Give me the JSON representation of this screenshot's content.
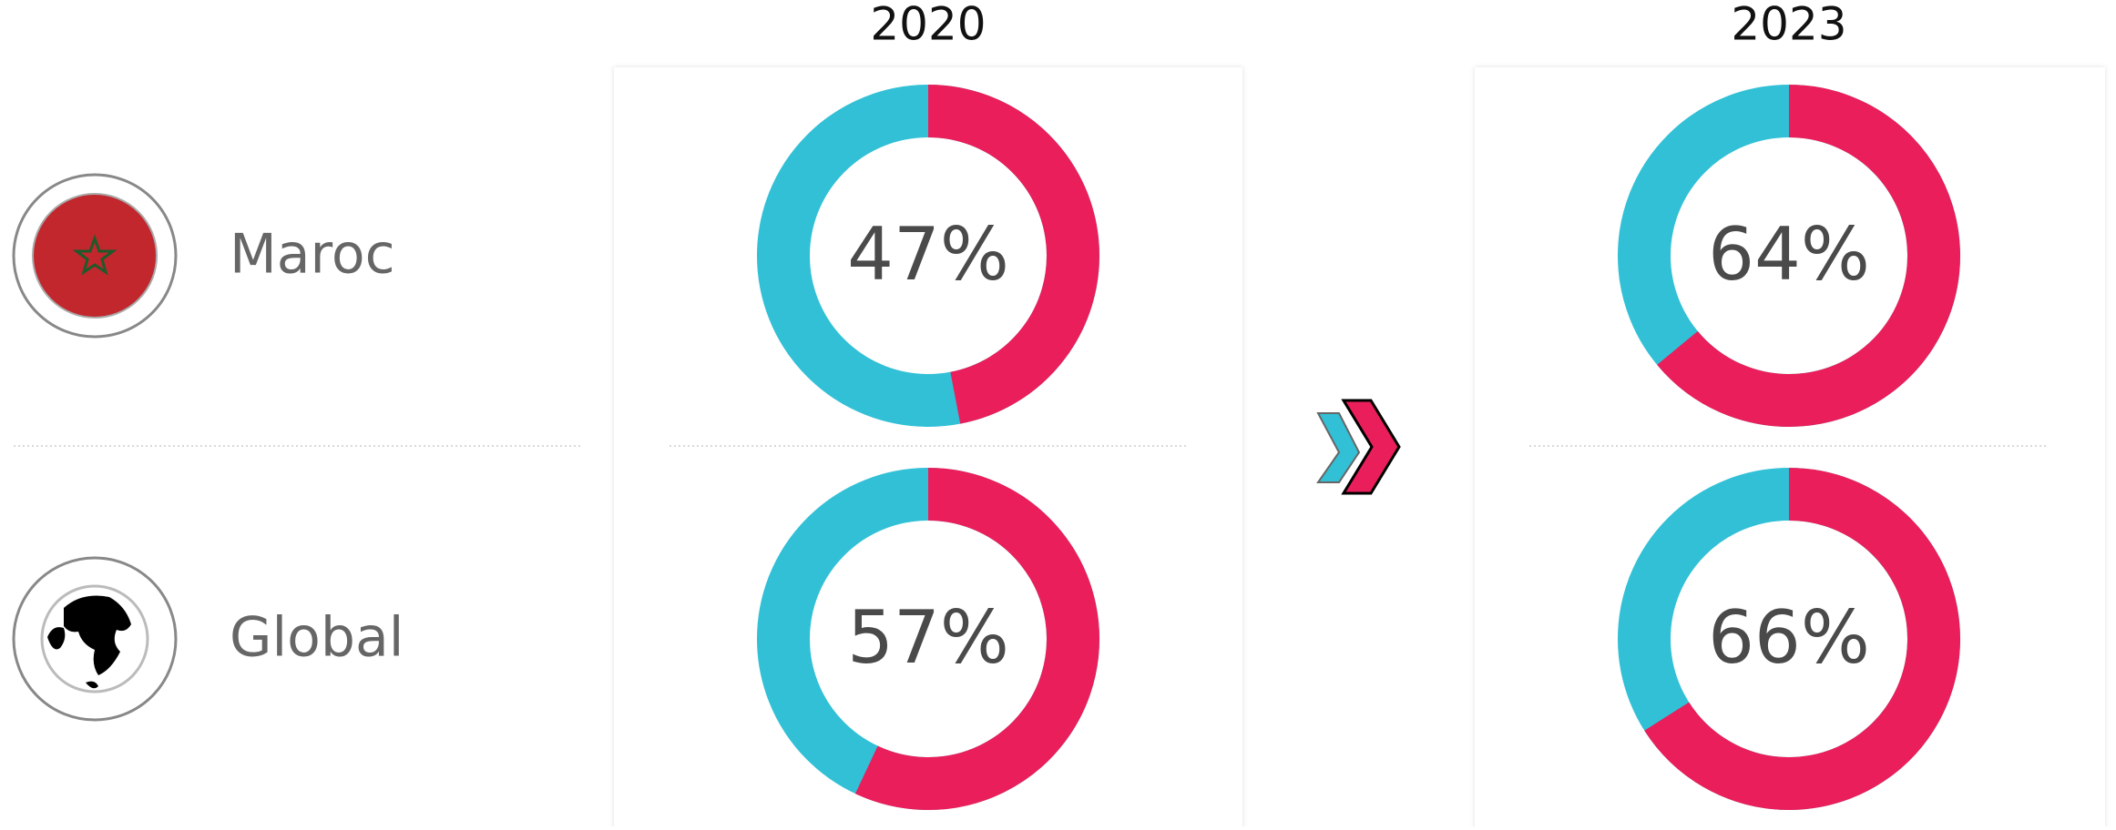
{
  "columns": [
    "2020",
    "2023"
  ],
  "rows": [
    "Maroc",
    "Global"
  ],
  "chart_data": [
    {
      "type": "donut",
      "values": [
        47
      ],
      "value_labels": [
        "47%"
      ],
      "colors": [
        "#e91e5a",
        "#31c0d6"
      ]
    },
    {
      "type": "donut",
      "values": [
        57
      ],
      "value_labels": [
        "57%"
      ],
      "colors": [
        "#e91e5a",
        "#31c0d6"
      ]
    },
    {
      "type": "donut",
      "values": [
        64
      ],
      "value_labels": [
        "64%"
      ],
      "colors": [
        "#e91e5a",
        "#31c0d6"
      ]
    },
    {
      "type": "donut",
      "values": [
        66
      ],
      "value_labels": [
        "66%"
      ],
      "colors": [
        "#e91e5a",
        "#31c0d6"
      ]
    }
  ]
}
